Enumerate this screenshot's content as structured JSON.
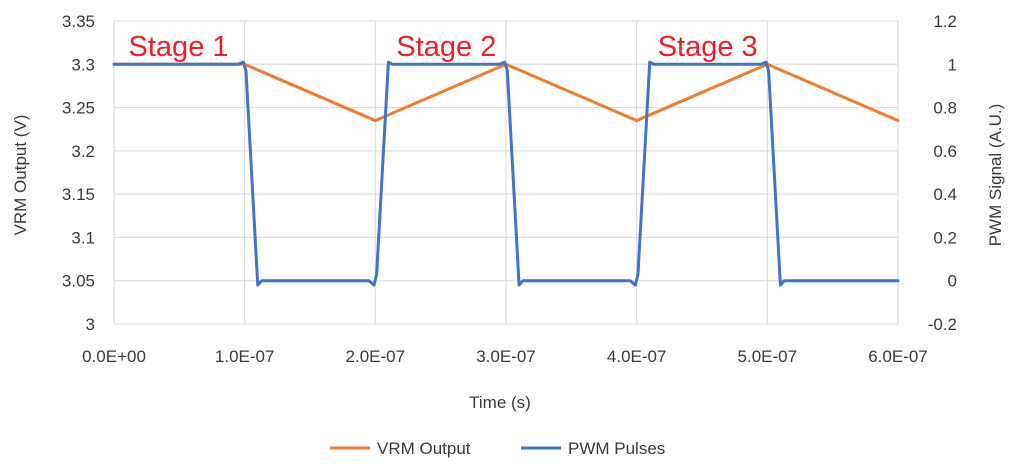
{
  "chart_data": {
    "type": "line",
    "title": "",
    "xlabel": "Time (s)",
    "ylabel_left": "VRM Output (V)",
    "ylabel_right": "PWM Signal (A.U.)",
    "xlim": [
      0,
      6e-07
    ],
    "ylim_left": [
      3,
      3.35
    ],
    "ylim_right": [
      -0.2,
      1.2
    ],
    "grid": true,
    "legend_position": "bottom",
    "x_ticks": [
      "0.0E+00",
      "1.0E-07",
      "2.0E-07",
      "3.0E-07",
      "4.0E-07",
      "5.0E-07",
      "6.0E-07"
    ],
    "y_left_ticks": [
      "3",
      "3.05",
      "3.1",
      "3.15",
      "3.2",
      "3.25",
      "3.3",
      "3.35"
    ],
    "y_right_ticks": [
      "-0.2",
      "0",
      "0.2",
      "0.4",
      "0.6",
      "0.8",
      "1",
      "1.2"
    ],
    "annotations": [
      {
        "text": "Stage 1",
        "x": 5e-09
      },
      {
        "text": "Stage 2",
        "x": 2.1e-07
      },
      {
        "text": "Stage 3",
        "x": 4.1e-07
      }
    ],
    "annotation_color": "#e8202a",
    "series": [
      {
        "name": "VRM Output",
        "axis": "left",
        "color": "#ed7d31",
        "x": [
          0,
          1e-07,
          2e-07,
          3e-07,
          4e-07,
          5e-07,
          6e-07
        ],
        "values": [
          3.3,
          3.3,
          3.235,
          3.3,
          3.235,
          3.3,
          3.235
        ]
      },
      {
        "name": "PWM Pulses",
        "axis": "right",
        "color": "#4472c4",
        "x": [
          0,
          9.5e-08,
          9.9e-08,
          1.01e-07,
          1.1e-07,
          1.13e-07,
          1.95e-07,
          1.99e-07,
          2.01e-07,
          2.1e-07,
          2.13e-07,
          2.95e-07,
          2.99e-07,
          3.01e-07,
          3.1e-07,
          3.13e-07,
          3.95e-07,
          3.99e-07,
          4.01e-07,
          4.1e-07,
          4.13e-07,
          4.95e-07,
          4.99e-07,
          5.01e-07,
          5.1e-07,
          5.13e-07,
          6e-07
        ],
        "values": [
          1,
          1,
          1.01,
          0.97,
          -0.02,
          0,
          0,
          -0.02,
          0.03,
          1.01,
          1,
          1,
          1.01,
          0.97,
          -0.02,
          0,
          0,
          -0.02,
          0.03,
          1.01,
          1,
          1,
          1.01,
          0.97,
          -0.02,
          0,
          0
        ]
      }
    ]
  }
}
